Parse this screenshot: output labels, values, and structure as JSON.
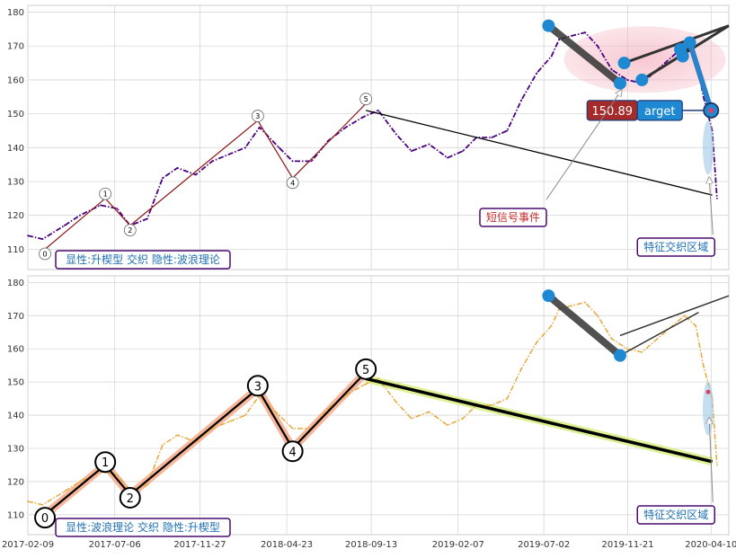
{
  "chart_data": [
    {
      "type": "line",
      "panel": "top",
      "ylim": [
        104,
        182
      ],
      "xlim": [
        "2017-02-09",
        "2020-05-10"
      ],
      "grid": true,
      "y_ticks": [
        110,
        120,
        130,
        140,
        150,
        160,
        170,
        180
      ],
      "x_ticks": [
        "2017-02-09",
        "2017-07-06",
        "2017-11-27",
        "2018-04-23",
        "2018-09-13",
        "2019-02-07",
        "2019-07-02",
        "2019-11-21",
        "2020-04-10"
      ],
      "series": [
        {
          "color": "#4b0082",
          "style": "dash-dot",
          "x": [
            "2017-02-09",
            "2017-03-06",
            "2017-04-12",
            "2017-05-08",
            "2017-06-12",
            "2017-07-10",
            "2017-08-01",
            "2017-08-30",
            "2017-09-25",
            "2017-10-20",
            "2017-11-20",
            "2017-12-18",
            "2018-01-15",
            "2018-02-12",
            "2018-03-08",
            "2018-04-10",
            "2018-05-03",
            "2018-06-04",
            "2018-07-02",
            "2018-08-01",
            "2018-08-30",
            "2018-09-25",
            "2018-10-25",
            "2018-11-20",
            "2018-12-20",
            "2019-01-20",
            "2019-02-15",
            "2019-03-10",
            "2019-04-05",
            "2019-05-01",
            "2019-05-25",
            "2019-06-20",
            "2019-07-15",
            "2019-07-28",
            "2019-08-18",
            "2019-09-10",
            "2019-10-01",
            "2019-10-25",
            "2019-11-20",
            "2019-12-15",
            "2020-01-10",
            "2020-02-05",
            "2020-02-25",
            "2020-03-15",
            "2020-03-28",
            "2020-04-12",
            "2020-04-20"
          ],
          "values": [
            114,
            113,
            117,
            120,
            123,
            122,
            117,
            119,
            131,
            134,
            132,
            136,
            138,
            140,
            146,
            140,
            136,
            136,
            142,
            146,
            149,
            151,
            144,
            139,
            141,
            137,
            139,
            143,
            143,
            145,
            154,
            162,
            167,
            172,
            173,
            174,
            170,
            163,
            160,
            159,
            163,
            167,
            170,
            167,
            155,
            145,
            125
          ]
        }
      ],
      "annotations": {
        "wave_points": [
          {
            "label": "0",
            "x": "2017-03-10",
            "y": 110
          },
          {
            "label": "1",
            "x": "2017-06-20",
            "y": 125
          },
          {
            "label": "2",
            "x": "2017-08-01",
            "y": 117
          },
          {
            "label": "3",
            "x": "2018-03-05",
            "y": 148
          },
          {
            "label": "4",
            "x": "2018-05-03",
            "y": 131
          },
          {
            "label": "5",
            "x": "2018-09-04",
            "y": 153
          }
        ],
        "wave_line_color": "#8b1a1a",
        "trend_line": {
          "from": {
            "x": "2018-09-04",
            "y": 151
          },
          "to": {
            "x": "2020-04-12",
            "y": 126
          },
          "color": "#000000"
        },
        "wedge_points": [
          {
            "x": "2019-07-10",
            "y": 176
          },
          {
            "x": "2019-11-08",
            "y": 159
          },
          {
            "x": "2019-11-15",
            "y": 165
          },
          {
            "x": "2019-12-15",
            "y": 160
          },
          {
            "x": "2020-02-18",
            "y": 169
          },
          {
            "x": "2020-02-22",
            "y": 167
          },
          {
            "x": "2020-03-05",
            "y": 171
          },
          {
            "x": "2020-04-10",
            "y": 151
          }
        ],
        "wedge_upper_end": {
          "x": "2020-05-10",
          "y": 176
        },
        "price_badge": "150.89",
        "target_badge": "arget",
        "label_short_signal": "短信号事件",
        "label_feature_zone": "特征交织区域",
        "legend_text": "显性:升楔型 交织 隐性:波浪理论"
      }
    },
    {
      "type": "line",
      "panel": "bottom",
      "ylim": [
        104,
        182
      ],
      "xlim": [
        "2017-02-09",
        "2020-05-10"
      ],
      "grid": true,
      "y_ticks": [
        110,
        120,
        130,
        140,
        150,
        160,
        170,
        180
      ],
      "x_ticks": [
        "2017-02-09",
        "2017-07-06",
        "2017-11-27",
        "2018-04-23",
        "2018-09-13",
        "2019-02-07",
        "2019-07-02",
        "2019-11-21",
        "2020-04-10"
      ],
      "series": [
        {
          "color": "#e8a838",
          "style": "dash-dot",
          "x": [
            "2017-02-09",
            "2017-03-06",
            "2017-04-12",
            "2017-05-08",
            "2017-06-12",
            "2017-07-10",
            "2017-08-01",
            "2017-08-30",
            "2017-09-25",
            "2017-10-20",
            "2017-11-20",
            "2017-12-18",
            "2018-01-15",
            "2018-02-12",
            "2018-03-08",
            "2018-04-10",
            "2018-05-03",
            "2018-06-04",
            "2018-07-02",
            "2018-08-01",
            "2018-08-30",
            "2018-09-25",
            "2018-10-25",
            "2018-11-20",
            "2018-12-20",
            "2019-01-20",
            "2019-02-15",
            "2019-03-10",
            "2019-04-05",
            "2019-05-01",
            "2019-05-25",
            "2019-06-20",
            "2019-07-15",
            "2019-07-28",
            "2019-08-18",
            "2019-09-10",
            "2019-10-01",
            "2019-10-25",
            "2019-11-20",
            "2019-12-15",
            "2020-01-10",
            "2020-02-05",
            "2020-02-25",
            "2020-03-15",
            "2020-03-28",
            "2020-04-12",
            "2020-04-20"
          ],
          "values": [
            114,
            113,
            117,
            120,
            123,
            122,
            117,
            119,
            131,
            134,
            132,
            136,
            138,
            140,
            146,
            140,
            136,
            136,
            142,
            146,
            149,
            151,
            144,
            139,
            141,
            137,
            139,
            143,
            143,
            145,
            154,
            162,
            167,
            172,
            173,
            174,
            170,
            163,
            160,
            159,
            163,
            167,
            170,
            167,
            155,
            145,
            125
          ]
        }
      ],
      "annotations": {
        "wave_points": [
          {
            "label": "0",
            "x": "2017-03-10",
            "y": 110
          },
          {
            "label": "1",
            "x": "2017-06-20",
            "y": 125
          },
          {
            "label": "2",
            "x": "2017-08-01",
            "y": 116
          },
          {
            "label": "3",
            "x": "2018-03-05",
            "y": 148
          },
          {
            "label": "4",
            "x": "2018-05-03",
            "y": 130
          },
          {
            "label": "5",
            "x": "2018-09-04",
            "y": 153
          }
        ],
        "trend_line": {
          "from": {
            "x": "2018-09-04",
            "y": 151
          },
          "to": {
            "x": "2020-04-12",
            "y": 126
          },
          "color": "#000000"
        },
        "wedge_points": [
          {
            "x": "2019-07-10",
            "y": 176
          },
          {
            "x": "2019-11-08",
            "y": 158
          }
        ],
        "wedge_upper_end": {
          "x": "2020-05-10",
          "y": 176
        },
        "wedge_lower_from": {
          "x": "2019-11-08",
          "y": 164
        },
        "wedge_lower_to": {
          "x": "2020-03-20",
          "y": 171
        },
        "label_feature_zone": "特征交织区域",
        "legend_text": "显性:波浪理论 交织 隐性:升楔型"
      }
    }
  ]
}
